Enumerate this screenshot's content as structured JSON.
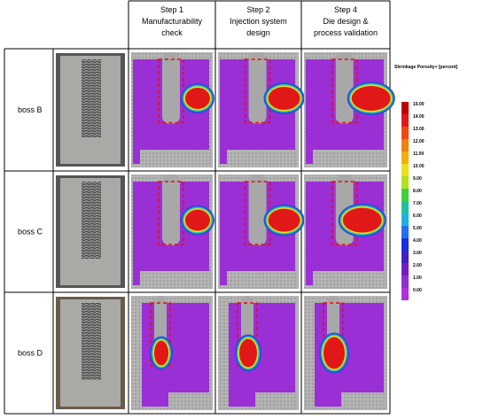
{
  "table": {
    "header": [
      [
        "Step 1",
        "Manufacturability",
        "check"
      ],
      [
        "Step 2",
        "Injection system",
        "design"
      ],
      [
        "Step 4",
        "Die design &",
        "process validation"
      ]
    ],
    "rows": [
      "boss B",
      "boss C",
      "boss D"
    ]
  },
  "legend": {
    "title": "Shrinkage Porosity+ [percent]",
    "ticks": [
      "15.00",
      "14.00",
      "13.00",
      "12.00",
      "11.00",
      "10.00",
      "9.00",
      "8.00",
      "7.00",
      "6.00",
      "5.00",
      "4.00",
      "3.00",
      "2.00",
      "1.00",
      "0.00"
    ]
  }
}
